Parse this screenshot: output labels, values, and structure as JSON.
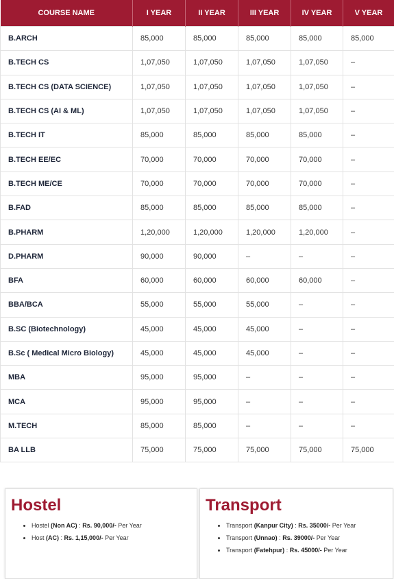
{
  "table": {
    "header": [
      "COURSE NAME",
      "I YEAR",
      "II YEAR",
      "III YEAR",
      "IV YEAR",
      "V YEAR"
    ],
    "rows": [
      [
        "B.ARCH",
        "85,000",
        "85,000",
        "85,000",
        "85,000",
        "85,000"
      ],
      [
        "B.TECH CS",
        "1,07,050",
        "1,07,050",
        "1,07,050",
        "1,07,050",
        "–"
      ],
      [
        "B.TECH CS (DATA SCIENCE)",
        "1,07,050",
        "1,07,050",
        "1,07,050",
        "1,07,050",
        "–"
      ],
      [
        "B.TECH CS (AI & ML)",
        "1,07,050",
        "1,07,050",
        "1,07,050",
        "1,07,050",
        "–"
      ],
      [
        "B.TECH IT",
        "85,000",
        "85,000",
        "85,000",
        "85,000",
        "–"
      ],
      [
        "B.TECH EE/EC",
        "70,000",
        "70,000",
        "70,000",
        "70,000",
        "–"
      ],
      [
        "B.TECH ME/CE",
        "70,000",
        "70,000",
        "70,000",
        "70,000",
        "–"
      ],
      [
        "B.FAD",
        "85,000",
        "85,000",
        "85,000",
        "85,000",
        "–"
      ],
      [
        "B.PHARM",
        "1,20,000",
        "1,20,000",
        "1,20,000",
        "1,20,000",
        "–"
      ],
      [
        "D.PHARM",
        "90,000",
        "90,000",
        "–",
        "–",
        "–"
      ],
      [
        "BFA",
        "60,000",
        "60,000",
        "60,000",
        "60,000",
        "–"
      ],
      [
        "BBA/BCA",
        "55,000",
        "55,000",
        "55,000",
        "–",
        "–"
      ],
      [
        "B.SC (Biotechnology)",
        "45,000",
        "45,000",
        "45,000",
        "–",
        "–"
      ],
      [
        "B.Sc ( Medical Micro Biology)",
        "45,000",
        "45,000",
        "45,000",
        "–",
        "–"
      ],
      [
        "MBA",
        "95,000",
        "95,000",
        "–",
        "–",
        "–"
      ],
      [
        "MCA",
        "95,000",
        "95,000",
        "–",
        "–",
        "–"
      ],
      [
        "M.TECH",
        "85,000",
        "85,000",
        "–",
        "–",
        "–"
      ],
      [
        "BA LLB",
        "75,000",
        "75,000",
        "75,000",
        "75,000",
        "75,000"
      ]
    ]
  },
  "hostel": {
    "title": "Hostel",
    "items": [
      {
        "parts": [
          "Hostel ",
          "(Non AC)",
          " : ",
          "Rs. 90,000/-",
          " Per Year"
        ]
      },
      {
        "parts": [
          "Host ",
          "(AC)",
          " : ",
          "Rs. 1,15,000/-",
          " Per Year"
        ]
      }
    ]
  },
  "transport": {
    "title": "Transport",
    "items": [
      {
        "parts": [
          "Transport  ",
          "(Kanpur City)",
          " : ",
          "Rs. 35000/-",
          " Per Year"
        ]
      },
      {
        "parts": [
          "Transport ",
          "(Unnao)",
          " : ",
          "Rs. 39000/-",
          " Per Year"
        ]
      },
      {
        "parts": [
          "Transport ",
          "(Fatehpur)",
          " : ",
          "Rs. 45000/-",
          " Per Year"
        ]
      }
    ]
  }
}
